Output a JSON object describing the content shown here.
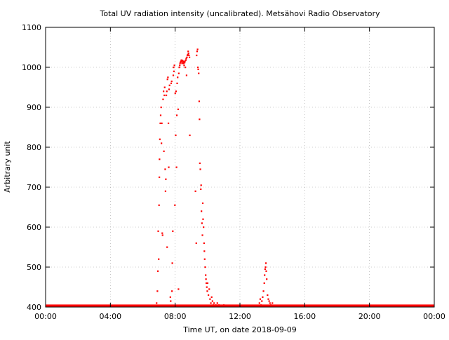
{
  "chart_data": {
    "type": "scatter",
    "title": "Total UV radiation intensity (uncalibrated). Metsähovi Radio Observatory",
    "xlabel": "Time UT, on date 2018-09-09",
    "ylabel": "Arbitrary unit",
    "xlim": [
      0,
      24
    ],
    "ylim": [
      400,
      1100
    ],
    "grid": true,
    "legend": "none",
    "x_ticks": [
      {
        "value": 0,
        "label": "00:00"
      },
      {
        "value": 4,
        "label": "04:00"
      },
      {
        "value": 8,
        "label": "08:00"
      },
      {
        "value": 12,
        "label": "12:00"
      },
      {
        "value": 16,
        "label": "16:00"
      },
      {
        "value": 20,
        "label": "20:00"
      },
      {
        "value": 24,
        "label": "00:00"
      }
    ],
    "y_ticks": [
      400,
      500,
      600,
      700,
      800,
      900,
      1000,
      1100
    ],
    "marker_color": "#ff0000",
    "baseline": {
      "y": 401,
      "x_start": 0,
      "x_end": 24
    },
    "series": [
      {
        "points": [
          [
            6.85,
            410
          ],
          [
            6.9,
            440
          ],
          [
            6.93,
            490
          ],
          [
            6.95,
            590
          ],
          [
            6.98,
            520
          ],
          [
            7.0,
            655
          ],
          [
            7.02,
            725
          ],
          [
            7.03,
            770
          ],
          [
            7.05,
            820
          ],
          [
            7.08,
            860
          ],
          [
            7.1,
            880
          ],
          [
            7.13,
            900
          ],
          [
            7.15,
            810
          ],
          [
            7.17,
            860
          ],
          [
            7.2,
            585
          ],
          [
            7.22,
            580
          ],
          [
            7.25,
            920
          ],
          [
            7.28,
            940
          ],
          [
            7.3,
            790
          ],
          [
            7.33,
            930
          ],
          [
            7.35,
            950
          ],
          [
            7.38,
            745
          ],
          [
            7.4,
            690
          ],
          [
            7.42,
            720
          ],
          [
            7.45,
            930
          ],
          [
            7.48,
            940
          ],
          [
            7.5,
            550
          ],
          [
            7.52,
            970
          ],
          [
            7.55,
            975
          ],
          [
            7.58,
            860
          ],
          [
            7.6,
            750
          ],
          [
            7.62,
            945
          ],
          [
            7.65,
            955
          ],
          [
            7.7,
            425
          ],
          [
            7.72,
            415
          ],
          [
            7.75,
            960
          ],
          [
            7.78,
            965
          ],
          [
            7.8,
            440
          ],
          [
            7.82,
            510
          ],
          [
            7.85,
            590
          ],
          [
            7.88,
            980
          ],
          [
            7.9,
            1000
          ],
          [
            7.92,
            990
          ],
          [
            7.95,
            1005
          ],
          [
            7.98,
            655
          ],
          [
            8.0,
            935
          ],
          [
            8.03,
            830
          ],
          [
            8.05,
            940
          ],
          [
            8.08,
            750
          ],
          [
            8.1,
            880
          ],
          [
            8.12,
            960
          ],
          [
            8.15,
            975
          ],
          [
            8.18,
            895
          ],
          [
            8.2,
            445
          ],
          [
            8.22,
            985
          ],
          [
            8.25,
            1000
          ],
          [
            8.28,
            1005
          ],
          [
            8.3,
            1010
          ],
          [
            8.33,
            1013
          ],
          [
            8.35,
            1015
          ],
          [
            8.38,
            1018
          ],
          [
            8.4,
            1015
          ],
          [
            8.42,
            1010
          ],
          [
            8.45,
            1017
          ],
          [
            8.48,
            1012
          ],
          [
            8.5,
            1015
          ],
          [
            8.52,
            1010
          ],
          [
            8.55,
            1005
          ],
          [
            8.58,
            1012
          ],
          [
            8.6,
            1015
          ],
          [
            8.62,
            1000
          ],
          [
            8.65,
            1018
          ],
          [
            8.68,
            1022
          ],
          [
            8.7,
            980
          ],
          [
            8.72,
            1025
          ],
          [
            8.75,
            1030
          ],
          [
            8.78,
            1032
          ],
          [
            8.8,
            1040
          ],
          [
            8.82,
            1035
          ],
          [
            8.85,
            1030
          ],
          [
            8.88,
            1025
          ],
          [
            8.9,
            830
          ],
          [
            9.25,
            690
          ],
          [
            9.3,
            560
          ],
          [
            9.32,
            1030
          ],
          [
            9.35,
            1040
          ],
          [
            9.38,
            1045
          ],
          [
            9.4,
            1000
          ],
          [
            9.42,
            995
          ],
          [
            9.45,
            985
          ],
          [
            9.48,
            915
          ],
          [
            9.5,
            870
          ],
          [
            9.52,
            760
          ],
          [
            9.55,
            745
          ],
          [
            9.58,
            695
          ],
          [
            9.6,
            705
          ],
          [
            9.62,
            640
          ],
          [
            9.65,
            610
          ],
          [
            9.68,
            580
          ],
          [
            9.7,
            660
          ],
          [
            9.72,
            620
          ],
          [
            9.75,
            600
          ],
          [
            9.78,
            560
          ],
          [
            9.8,
            540
          ],
          [
            9.82,
            520
          ],
          [
            9.85,
            500
          ],
          [
            9.88,
            480
          ],
          [
            9.9,
            470
          ],
          [
            9.92,
            460
          ],
          [
            9.95,
            450
          ],
          [
            9.98,
            440
          ],
          [
            10.0,
            460
          ],
          [
            10.05,
            430
          ],
          [
            10.1,
            445
          ],
          [
            10.15,
            420
          ],
          [
            10.2,
            410
          ],
          [
            10.25,
            425
          ],
          [
            10.3,
            415
          ],
          [
            10.35,
            405
          ],
          [
            10.4,
            410
          ],
          [
            10.5,
            405
          ],
          [
            10.6,
            410
          ],
          [
            10.7,
            405
          ],
          [
            10.8,
            402
          ],
          [
            11.0,
            405
          ],
          [
            11.5,
            402
          ],
          [
            12.0,
            403
          ],
          [
            12.5,
            402
          ],
          [
            13.2,
            410
          ],
          [
            13.25,
            420
          ],
          [
            13.3,
            405
          ],
          [
            13.35,
            415
          ],
          [
            13.4,
            425
          ],
          [
            13.45,
            440
          ],
          [
            13.5,
            460
          ],
          [
            13.52,
            480
          ],
          [
            13.55,
            495
          ],
          [
            13.58,
            500
          ],
          [
            13.6,
            510
          ],
          [
            13.62,
            490
          ],
          [
            13.65,
            470
          ],
          [
            13.7,
            430
          ],
          [
            13.75,
            420
          ],
          [
            13.8,
            415
          ],
          [
            13.85,
            410
          ],
          [
            13.9,
            405
          ],
          [
            14.0,
            410
          ],
          [
            14.5,
            403
          ],
          [
            15.2,
            404
          ]
        ]
      }
    ]
  }
}
